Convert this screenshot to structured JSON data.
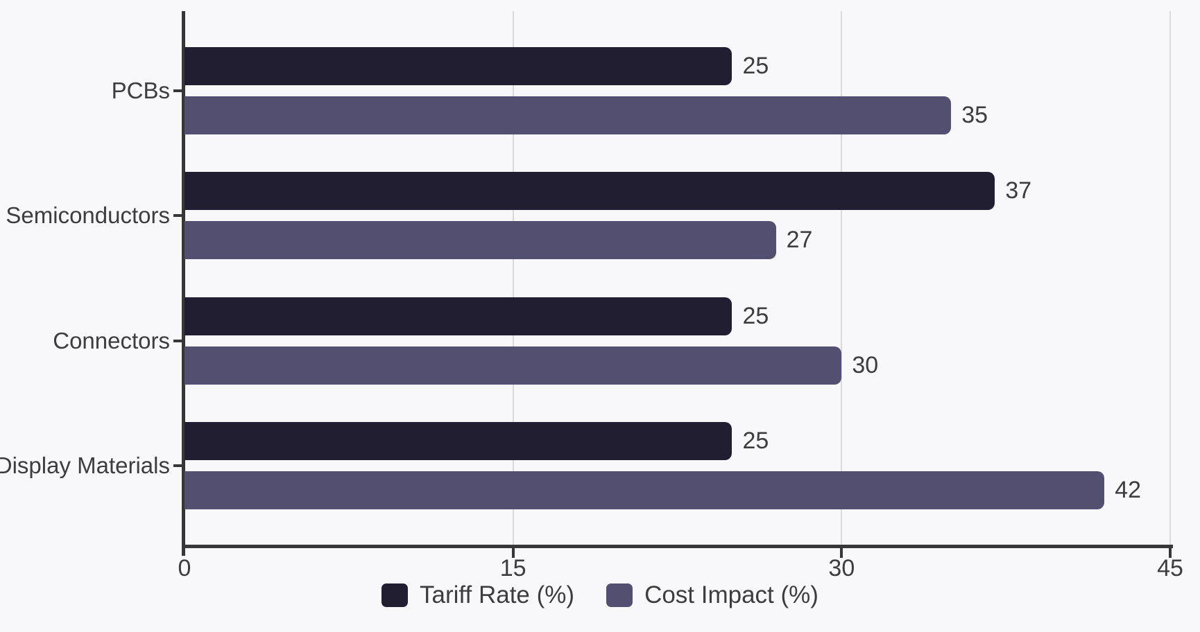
{
  "chart_data": {
    "type": "bar",
    "orientation": "horizontal",
    "title": "",
    "categories": [
      "PCBs",
      "Semiconductors",
      "Connectors",
      "Display Materials"
    ],
    "series": [
      {
        "name": "Tariff Rate (%)",
        "color": "#211e31",
        "values": [
          25,
          37,
          25,
          25
        ]
      },
      {
        "name": "Cost Impact (%)",
        "color": "#534f70",
        "values": [
          35,
          27,
          30,
          42
        ]
      }
    ],
    "xlim": [
      0,
      45
    ],
    "x_ticks": [
      0,
      15,
      30,
      45
    ],
    "x_tick_labels": [
      "0",
      "15",
      "30",
      "45"
    ],
    "grid": true,
    "legend_position": "bottom",
    "value_labels_shown": true,
    "colors": {
      "background": "#f8f8fa",
      "axis": "#373737",
      "gridline": "#d9d9dc",
      "text": "#3d3d3d"
    }
  }
}
